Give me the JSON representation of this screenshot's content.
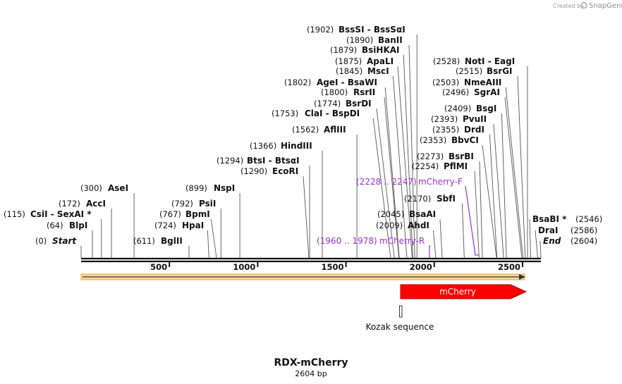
{
  "branding": {
    "created_by": "Created by",
    "app": "SnapGene"
  },
  "map": {
    "title": "RDX-mCherry",
    "length_label": "2604 bp",
    "scale_ticks": [
      "500",
      "1000",
      "1500",
      "2000",
      "2500"
    ]
  },
  "sites": [
    {
      "num": "(0)",
      "name": "Start",
      "italic": true
    },
    {
      "num": "(64)",
      "name": "BlpI"
    },
    {
      "num": "(115)",
      "name": "CsiI - SexAI *"
    },
    {
      "num": "(172)",
      "name": "AccI"
    },
    {
      "num": "(300)",
      "name": "AseI"
    },
    {
      "num": "(611)",
      "name": "BglII"
    },
    {
      "num": "(724)",
      "name": "HpaI"
    },
    {
      "num": "(767)",
      "name": "BpmI"
    },
    {
      "num": "(792)",
      "name": "PsiI"
    },
    {
      "num": "(899)",
      "name": "NspI"
    },
    {
      "num": "(1290)",
      "name": "EcoRI"
    },
    {
      "num": "(1294)",
      "name": "BtsI - BtsαI"
    },
    {
      "num": "(1366)",
      "name": "HindIII"
    },
    {
      "num": "(1562)",
      "name": "AflIII"
    },
    {
      "num": "(1753)",
      "name": "ClaI - BspDI"
    },
    {
      "num": "(1774)",
      "name": "BsrDI"
    },
    {
      "num": "(1800)",
      "name": "RsrII"
    },
    {
      "num": "(1802)",
      "name": "AgeI - BsaWI"
    },
    {
      "num": "(1845)",
      "name": "MscI"
    },
    {
      "num": "(1875)",
      "name": "ApaLI"
    },
    {
      "num": "(1879)",
      "name": "BsiHKAI"
    },
    {
      "num": "(1890)",
      "name": "BanII"
    },
    {
      "num": "(1902)",
      "name": "BssSI - BssSαI"
    },
    {
      "num": "(2009)",
      "name": "AhdI"
    },
    {
      "num": "(2045)",
      "name": "BsaAI"
    },
    {
      "num": "(2170)",
      "name": "SbfI"
    },
    {
      "num": "(2254)",
      "name": "PflMI"
    },
    {
      "num": "(2273)",
      "name": "BsrBI"
    },
    {
      "num": "(2353)",
      "name": "BbvCI"
    },
    {
      "num": "(2355)",
      "name": "DrdI"
    },
    {
      "num": "(2393)",
      "name": "PvuII"
    },
    {
      "num": "(2409)",
      "name": "BsgI"
    },
    {
      "num": "(2496)",
      "name": "SgrAI"
    },
    {
      "num": "(2503)",
      "name": "NmeAIII"
    },
    {
      "num": "(2515)",
      "name": "BsrGI"
    },
    {
      "num": "(2528)",
      "name": "NotI - EagI"
    },
    {
      "num": "(2546)",
      "name": "BsaBI *"
    },
    {
      "num": "(2586)",
      "name": "DraI"
    },
    {
      "num": "(2604)",
      "name": "End",
      "italic": true
    }
  ],
  "primers": [
    {
      "range": "(1960 .. 1978)",
      "name": "mCherry-R"
    },
    {
      "range": "(2228 .. 2247)",
      "name": "mCherry-F"
    }
  ],
  "features": [
    {
      "name": "mCherry",
      "color": "#ff0000"
    },
    {
      "name": "Kozak sequence",
      "color": "#ffffff"
    }
  ],
  "colors": {
    "primer": "#9b30d9",
    "backbone_arrow": "#f0a020",
    "feature": "#ff0000"
  }
}
